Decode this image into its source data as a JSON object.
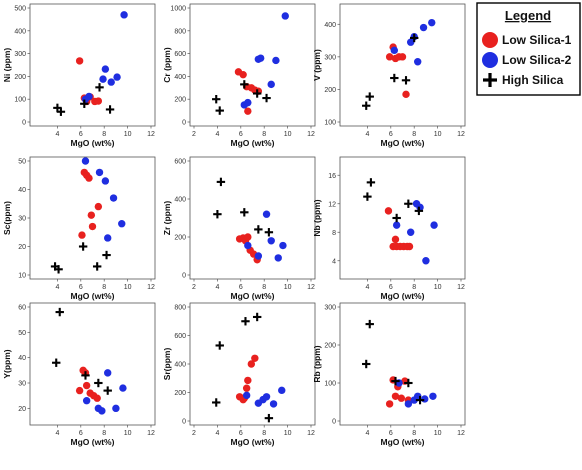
{
  "legend": {
    "title": "Legend",
    "entries": [
      {
        "label": "Low Silica-1",
        "color": "#e8211f",
        "marker": "circle"
      },
      {
        "label": "Low Silica-2",
        "color": "#1f2ee0",
        "marker": "circle"
      },
      {
        "label": "High Silica",
        "color": "#000000",
        "marker": "plus"
      }
    ]
  },
  "chart_data": [
    {
      "type": "scatter",
      "ylabel": "Ni (ppm)",
      "xlabel": "MgO (wt%)",
      "xlim": [
        2,
        12
      ],
      "xticks": [
        4,
        6,
        8,
        10,
        12
      ],
      "ylim": [
        0,
        500
      ],
      "yticks": [
        0,
        100,
        200,
        300,
        400,
        500
      ],
      "series": [
        {
          "key": "ls1",
          "points": [
            [
              5.9,
              268
            ],
            [
              6.3,
              105
            ],
            [
              6.5,
              90
            ],
            [
              6.8,
              110
            ],
            [
              7.2,
              90
            ],
            [
              7.5,
              92
            ]
          ]
        },
        {
          "key": "ls2",
          "points": [
            [
              6.4,
              100
            ],
            [
              6.7,
              112
            ],
            [
              7.9,
              188
            ],
            [
              8.1,
              232
            ],
            [
              8.6,
              175
            ],
            [
              9.1,
              197
            ],
            [
              9.7,
              470
            ]
          ]
        },
        {
          "key": "hs",
          "points": [
            [
              4.0,
              62
            ],
            [
              4.3,
              45
            ],
            [
              6.3,
              80
            ],
            [
              7.6,
              152
            ],
            [
              8.5,
              55
            ]
          ]
        }
      ]
    },
    {
      "type": "scatter",
      "ylabel": "Cr (ppm)",
      "xlabel": "MgO (wt%)",
      "xlim": [
        2,
        12
      ],
      "xticks": [
        2,
        4,
        6,
        8,
        10,
        12
      ],
      "ylim": [
        0,
        1000
      ],
      "yticks": [
        0,
        200,
        400,
        600,
        800,
        1000
      ],
      "series": [
        {
          "key": "ls1",
          "points": [
            [
              5.8,
              440
            ],
            [
              6.2,
              415
            ],
            [
              6.5,
              310
            ],
            [
              6.6,
              95
            ],
            [
              6.9,
              300
            ],
            [
              7.2,
              280
            ],
            [
              7.5,
              270
            ]
          ]
        },
        {
          "key": "ls2",
          "points": [
            [
              6.3,
              150
            ],
            [
              6.6,
              170
            ],
            [
              7.5,
              550
            ],
            [
              7.7,
              560
            ],
            [
              8.6,
              330
            ],
            [
              9.0,
              540
            ],
            [
              9.8,
              930
            ]
          ]
        },
        {
          "key": "hs",
          "points": [
            [
              3.9,
              200
            ],
            [
              4.2,
              100
            ],
            [
              6.3,
              330
            ],
            [
              7.4,
              250
            ],
            [
              8.2,
              210
            ]
          ]
        }
      ]
    },
    {
      "type": "scatter",
      "ylabel": "V (ppm)",
      "xlabel": "MgO (wt%)",
      "xlim": [
        2,
        12
      ],
      "xticks": [
        4,
        6,
        8,
        10,
        12
      ],
      "ylim": [
        100,
        450
      ],
      "yticks": [
        100,
        200,
        300,
        400
      ],
      "series": [
        {
          "key": "ls1",
          "points": [
            [
              5.9,
              300
            ],
            [
              6.2,
              330
            ],
            [
              6.4,
              295
            ],
            [
              6.7,
              300
            ],
            [
              7.0,
              300
            ],
            [
              7.3,
              185
            ]
          ]
        },
        {
          "key": "ls2",
          "points": [
            [
              6.3,
              320
            ],
            [
              7.7,
              345
            ],
            [
              8.0,
              362
            ],
            [
              8.3,
              285
            ],
            [
              8.8,
              390
            ],
            [
              9.5,
              405
            ]
          ]
        },
        {
          "key": "hs",
          "points": [
            [
              3.9,
              150
            ],
            [
              4.2,
              178
            ],
            [
              6.3,
              235
            ],
            [
              7.3,
              228
            ],
            [
              8.0,
              358
            ]
          ]
        }
      ]
    },
    {
      "type": "scatter",
      "ylabel": "Sc(ppm)",
      "xlabel": "MgO (wt%)",
      "xlim": [
        2,
        12
      ],
      "xticks": [
        4,
        6,
        8,
        10,
        12
      ],
      "ylim": [
        10,
        50
      ],
      "yticks": [
        10,
        20,
        30,
        40,
        50
      ],
      "series": [
        {
          "key": "ls1",
          "points": [
            [
              6.1,
              24
            ],
            [
              6.3,
              46
            ],
            [
              6.5,
              45
            ],
            [
              6.7,
              44
            ],
            [
              6.9,
              31
            ],
            [
              7.0,
              27
            ],
            [
              7.5,
              34
            ]
          ]
        },
        {
          "key": "ls2",
          "points": [
            [
              6.4,
              50
            ],
            [
              7.6,
              46
            ],
            [
              8.1,
              43
            ],
            [
              8.3,
              23
            ],
            [
              8.8,
              37
            ],
            [
              9.5,
              28
            ]
          ]
        },
        {
          "key": "hs",
          "points": [
            [
              3.8,
              13
            ],
            [
              4.1,
              12
            ],
            [
              6.2,
              20
            ],
            [
              7.4,
              13
            ],
            [
              8.2,
              17
            ]
          ]
        }
      ]
    },
    {
      "type": "scatter",
      "ylabel": "Zr (ppm)",
      "xlabel": "MgO (wt%)",
      "xlim": [
        2,
        12
      ],
      "xticks": [
        2,
        4,
        6,
        8,
        10,
        12
      ],
      "ylim": [
        0,
        600
      ],
      "yticks": [
        0,
        200,
        400,
        600
      ],
      "series": [
        {
          "key": "ls1",
          "points": [
            [
              5.9,
              190
            ],
            [
              6.2,
              195
            ],
            [
              6.4,
              180
            ],
            [
              6.6,
              200
            ],
            [
              6.8,
              130
            ],
            [
              7.1,
              110
            ],
            [
              7.4,
              80
            ]
          ]
        },
        {
          "key": "ls2",
          "points": [
            [
              6.6,
              155
            ],
            [
              7.5,
              100
            ],
            [
              8.2,
              320
            ],
            [
              8.6,
              180
            ],
            [
              9.2,
              90
            ],
            [
              9.6,
              155
            ]
          ]
        },
        {
          "key": "hs",
          "points": [
            [
              4.0,
              320
            ],
            [
              4.3,
              490
            ],
            [
              6.3,
              330
            ],
            [
              7.5,
              240
            ],
            [
              8.4,
              225
            ]
          ]
        }
      ]
    },
    {
      "type": "scatter",
      "ylabel": "Nb (ppm)",
      "xlabel": "MgO (wt%)",
      "xlim": [
        2,
        12
      ],
      "xticks": [
        4,
        6,
        8,
        10,
        12
      ],
      "ylim": [
        2,
        18
      ],
      "yticks": [
        4,
        8,
        12,
        16
      ],
      "series": [
        {
          "key": "ls1",
          "points": [
            [
              5.8,
              11
            ],
            [
              6.2,
              6
            ],
            [
              6.4,
              7
            ],
            [
              6.5,
              6
            ],
            [
              6.8,
              6
            ],
            [
              7.1,
              6
            ],
            [
              7.4,
              6
            ],
            [
              7.6,
              6
            ]
          ]
        },
        {
          "key": "ls2",
          "points": [
            [
              6.5,
              9
            ],
            [
              7.7,
              8
            ],
            [
              8.2,
              12
            ],
            [
              8.5,
              11.5
            ],
            [
              9.0,
              4
            ],
            [
              9.7,
              9
            ]
          ]
        },
        {
          "key": "hs",
          "points": [
            [
              4.0,
              13
            ],
            [
              4.3,
              15
            ],
            [
              6.5,
              10
            ],
            [
              7.5,
              12
            ],
            [
              8.4,
              11
            ]
          ]
        }
      ]
    },
    {
      "type": "scatter",
      "ylabel": "Y(ppm)",
      "xlabel": "MgO (wt%)",
      "xlim": [
        2,
        12
      ],
      "xticks": [
        4,
        6,
        8,
        10,
        12
      ],
      "ylim": [
        15,
        60
      ],
      "yticks": [
        20,
        30,
        40,
        50,
        60
      ],
      "series": [
        {
          "key": "ls1",
          "points": [
            [
              5.9,
              27
            ],
            [
              6.2,
              35
            ],
            [
              6.4,
              34
            ],
            [
              6.5,
              29
            ],
            [
              6.8,
              26
            ],
            [
              7.1,
              25
            ],
            [
              7.4,
              24
            ]
          ]
        },
        {
          "key": "ls2",
          "points": [
            [
              6.5,
              23
            ],
            [
              7.5,
              20
            ],
            [
              7.8,
              19
            ],
            [
              8.3,
              34
            ],
            [
              9.0,
              20
            ],
            [
              9.6,
              28
            ]
          ]
        },
        {
          "key": "hs",
          "points": [
            [
              3.9,
              38
            ],
            [
              4.2,
              58
            ],
            [
              6.4,
              33
            ],
            [
              7.5,
              30
            ],
            [
              8.3,
              27
            ]
          ]
        }
      ]
    },
    {
      "type": "scatter",
      "ylabel": "Sr(ppm)",
      "xlabel": "MgO (wt%)",
      "xlim": [
        2,
        12
      ],
      "xticks": [
        2,
        4,
        6,
        8,
        10,
        12
      ],
      "ylim": [
        0,
        800
      ],
      "yticks": [
        0,
        200,
        400,
        600,
        800
      ],
      "series": [
        {
          "key": "ls1",
          "points": [
            [
              5.9,
              170
            ],
            [
              6.3,
              160
            ],
            [
              6.5,
              230
            ],
            [
              6.6,
              285
            ],
            [
              6.9,
              400
            ],
            [
              7.2,
              440
            ],
            [
              6.2,
              150
            ]
          ]
        },
        {
          "key": "ls2",
          "points": [
            [
              6.5,
              180
            ],
            [
              7.5,
              125
            ],
            [
              7.9,
              150
            ],
            [
              8.2,
              170
            ],
            [
              8.8,
              120
            ],
            [
              9.5,
              215
            ]
          ]
        },
        {
          "key": "hs",
          "points": [
            [
              3.9,
              130
            ],
            [
              4.2,
              530
            ],
            [
              6.4,
              700
            ],
            [
              7.4,
              730
            ],
            [
              8.4,
              20
            ]
          ]
        }
      ]
    },
    {
      "type": "scatter",
      "ylabel": "Rb (ppm)",
      "xlabel": "MgO (wt%)",
      "xlim": [
        2,
        12
      ],
      "xticks": [
        4,
        6,
        8,
        10,
        12
      ],
      "ylim": [
        0,
        300
      ],
      "yticks": [
        0,
        100,
        200,
        300
      ],
      "series": [
        {
          "key": "ls1",
          "points": [
            [
              5.9,
              45
            ],
            [
              6.2,
              108
            ],
            [
              6.4,
              65
            ],
            [
              6.6,
              90
            ],
            [
              6.9,
              60
            ],
            [
              7.2,
              105
            ],
            [
              7.5,
              55
            ]
          ]
        },
        {
          "key": "ls2",
          "points": [
            [
              6.7,
              100
            ],
            [
              7.5,
              45
            ],
            [
              8.0,
              55
            ],
            [
              8.3,
              65
            ],
            [
              8.9,
              58
            ],
            [
              9.6,
              65
            ]
          ]
        },
        {
          "key": "hs",
          "points": [
            [
              3.9,
              150
            ],
            [
              4.2,
              255
            ],
            [
              6.4,
              105
            ],
            [
              7.5,
              100
            ],
            [
              8.5,
              55
            ]
          ]
        }
      ]
    }
  ]
}
